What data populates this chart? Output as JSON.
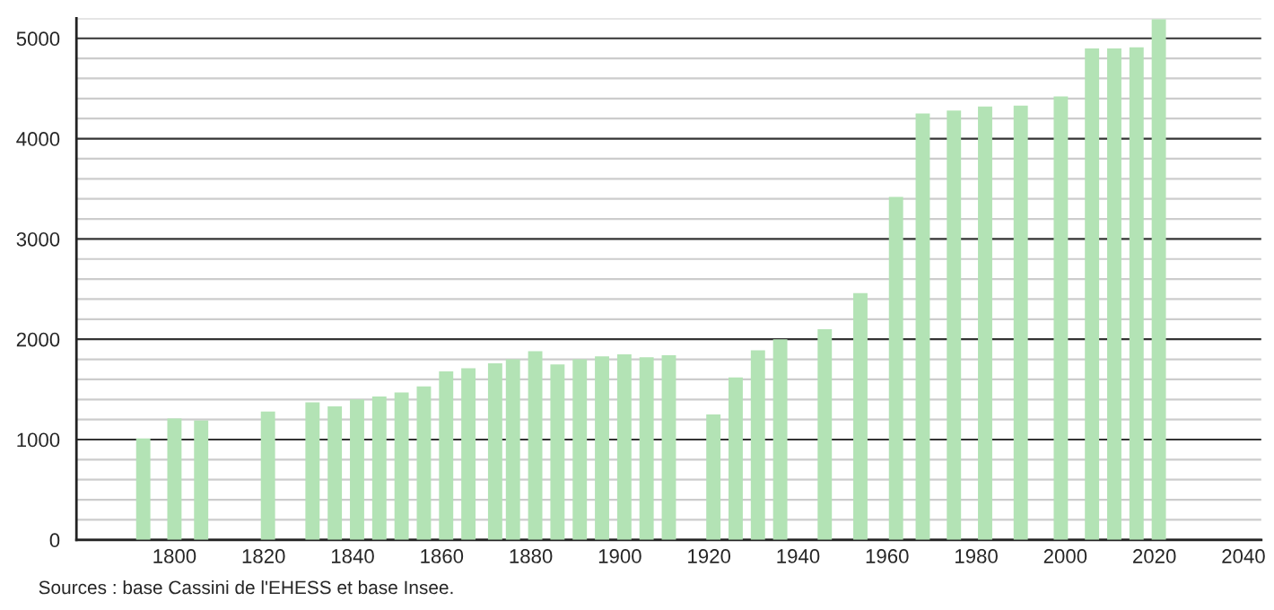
{
  "chart_data": {
    "type": "bar",
    "x": [
      1793,
      1800,
      1806,
      1821,
      1831,
      1836,
      1841,
      1846,
      1851,
      1856,
      1861,
      1866,
      1872,
      1876,
      1881,
      1886,
      1891,
      1896,
      1901,
      1906,
      1911,
      1921,
      1926,
      1931,
      1936,
      1946,
      1954,
      1962,
      1968,
      1975,
      1982,
      1990,
      1999,
      2006,
      2011,
      2016,
      2021
    ],
    "values": [
      1010,
      1210,
      1190,
      1280,
      1370,
      1330,
      1400,
      1430,
      1470,
      1530,
      1680,
      1710,
      1760,
      1800,
      1880,
      1750,
      1800,
      1830,
      1850,
      1820,
      1840,
      1250,
      1620,
      1890,
      2000,
      2100,
      2460,
      3420,
      4250,
      4280,
      4320,
      4330,
      4420,
      4900,
      4900,
      4910,
      5190
    ],
    "color": "#b3e3b5",
    "xlim": [
      1778,
      2044
    ],
    "xticks": [
      1800,
      1820,
      1840,
      1860,
      1880,
      1900,
      1920,
      1940,
      1960,
      1980,
      2000,
      2020,
      2040
    ],
    "ylim": [
      0,
      5200
    ],
    "yticks": [
      0,
      {
        "value": 200,
        "label": null
      },
      {
        "value": 400,
        "label": null
      },
      {
        "value": 600,
        "label": null
      },
      {
        "value": 800,
        "label": null
      },
      1000,
      {
        "value": 1200,
        "label": null
      },
      {
        "value": 1400,
        "label": null
      },
      {
        "value": 1600,
        "label": null
      },
      {
        "value": 1800,
        "label": null
      },
      2000,
      {
        "value": 2200,
        "label": null
      },
      {
        "value": 2400,
        "label": null
      },
      {
        "value": 2600,
        "label": null
      },
      {
        "value": 2800,
        "label": null
      },
      3000,
      {
        "value": 3200,
        "label": null
      },
      {
        "value": 3400,
        "label": null
      },
      {
        "value": 3600,
        "label": null
      },
      {
        "value": 3800,
        "label": null
      },
      4000,
      {
        "value": 4200,
        "label": null
      },
      {
        "value": 4400,
        "label": null
      },
      {
        "value": 4600,
        "label": null
      },
      {
        "value": 4800,
        "label": null
      },
      5000,
      {
        "value": 5200,
        "label": null
      }
    ],
    "grid": "y",
    "annotations": [
      "Sources : base Cassini de l'EHESS et base Insee."
    ]
  }
}
